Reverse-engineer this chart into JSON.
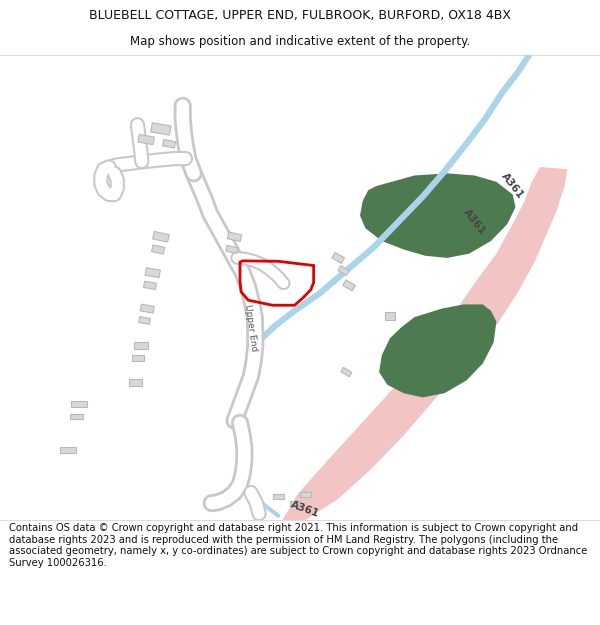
{
  "title_line1": "BLUEBELL COTTAGE, UPPER END, FULBROOK, BURFORD, OX18 4BX",
  "title_line2": "Map shows position and indicative extent of the property.",
  "footer_text": "Contains OS data © Crown copyright and database right 2021. This information is subject to Crown copyright and database rights 2023 and is reproduced with the permission of HM Land Registry. The polygons (including the associated geometry, namely x, y co-ordinates) are subject to Crown copyright and database rights 2023 Ordnance Survey 100026316.",
  "bg": "#ffffff",
  "road_pink": "#f2c4c4",
  "green_area": "#4e7a52",
  "blue_stream": "#aad4ea",
  "building_fill": "#d8d8d8",
  "building_edge": "#b8b8b8",
  "road_fill": "#ffffff",
  "road_edge": "#c8c8c8",
  "red_poly": "#e00000",
  "title_fs": 9,
  "footer_fs": 7.2
}
